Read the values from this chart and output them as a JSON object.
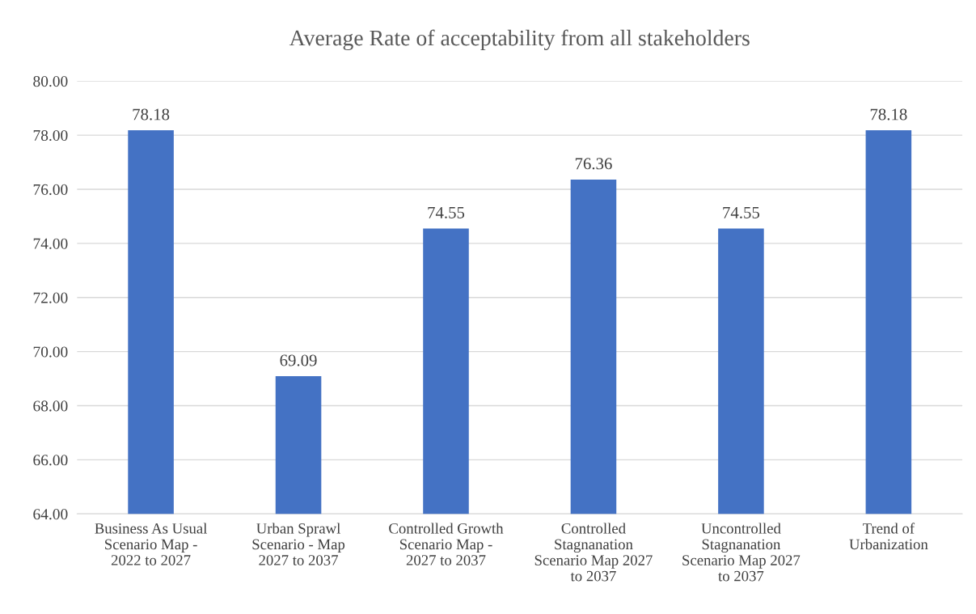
{
  "chart_data": {
    "type": "bar",
    "title": "Average Rate of acceptability from all stakeholders",
    "categories": [
      "Business As Usual\nScenario Map -\n2022 to 2027",
      "Urban Sprawl\nScenario - Map\n2027 to 2037",
      "Controlled Growth\nScenario Map -\n2027 to 2037",
      "Controlled\nStagnanation\nScenario Map 2027\nto 2037",
      "Uncontrolled\nStagnanation\nScenario Map 2027\nto 2037",
      "Trend of\nUrbanization"
    ],
    "values": [
      78.18,
      69.09,
      74.55,
      76.36,
      74.55,
      78.18
    ],
    "color": "#4472c4",
    "ylim": [
      64,
      80
    ],
    "yticks": [
      {
        "value": 64,
        "label": "64.00"
      },
      {
        "value": 66,
        "label": "66.00"
      },
      {
        "value": 68,
        "label": "68.00"
      },
      {
        "value": 70,
        "label": "70.00"
      },
      {
        "value": 72,
        "label": "72.00"
      },
      {
        "value": 74,
        "label": "74.00"
      },
      {
        "value": 76,
        "label": "76.00"
      },
      {
        "value": 78,
        "label": "78.00"
      },
      {
        "value": 80,
        "label": "80.00"
      }
    ],
    "grid": "y",
    "data_labels": true
  }
}
